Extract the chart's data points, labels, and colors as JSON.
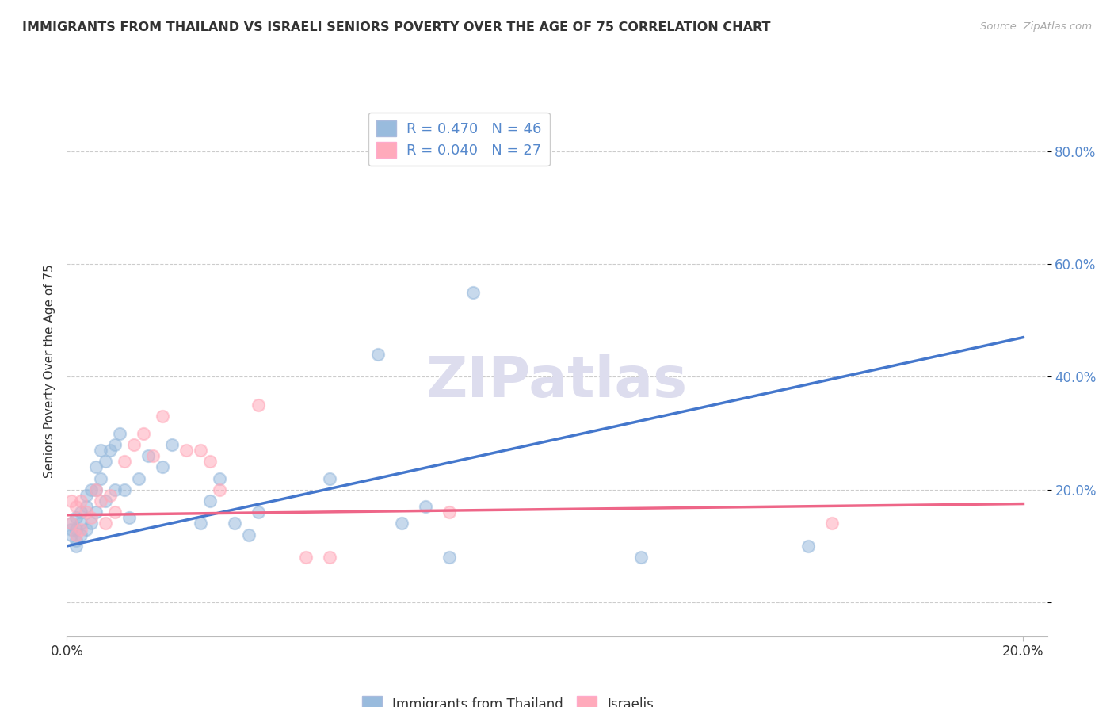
{
  "title": "IMMIGRANTS FROM THAILAND VS ISRAELI SENIORS POVERTY OVER THE AGE OF 75 CORRELATION CHART",
  "source": "Source: ZipAtlas.com",
  "legend_bottom": [
    "Immigrants from Thailand",
    "Israelis"
  ],
  "ylabel": "Seniors Poverty Over the Age of 75",
  "legend_R1": "R = 0.470",
  "legend_N1": "N = 46",
  "legend_R2": "R = 0.040",
  "legend_N2": "N = 27",
  "xlim": [
    0.0,
    0.205
  ],
  "ylim": [
    -0.06,
    0.88
  ],
  "yticks": [
    0.0,
    0.2,
    0.4,
    0.6,
    0.8
  ],
  "ytick_labels": [
    "",
    "20.0%",
    "40.0%",
    "60.0%",
    "80.0%"
  ],
  "xticks": [
    0.0,
    0.2
  ],
  "xtick_labels": [
    "0.0%",
    "20.0%"
  ],
  "blue_dot_color": "#99BBDD",
  "pink_dot_color": "#FFAABB",
  "blue_line_color": "#4477CC",
  "pink_line_color": "#EE6688",
  "grid_color": "#CCCCCC",
  "text_color": "#333333",
  "axis_label_color": "#5588CC",
  "watermark_color": "#DDDDEE",
  "blue_line_x0": 0.0,
  "blue_line_y0": 0.1,
  "blue_line_x1": 0.2,
  "blue_line_y1": 0.47,
  "pink_line_x0": 0.0,
  "pink_line_y0": 0.155,
  "pink_line_x1": 0.2,
  "pink_line_y1": 0.175,
  "blue_scatter_x": [
    0.001,
    0.001,
    0.001,
    0.002,
    0.002,
    0.002,
    0.002,
    0.003,
    0.003,
    0.003,
    0.004,
    0.004,
    0.004,
    0.005,
    0.005,
    0.006,
    0.006,
    0.006,
    0.007,
    0.007,
    0.008,
    0.008,
    0.009,
    0.01,
    0.01,
    0.011,
    0.012,
    0.013,
    0.015,
    0.017,
    0.02,
    0.022,
    0.028,
    0.03,
    0.032,
    0.035,
    0.038,
    0.04,
    0.055,
    0.065,
    0.07,
    0.075,
    0.08,
    0.085,
    0.12,
    0.155
  ],
  "blue_scatter_y": [
    0.12,
    0.13,
    0.14,
    0.1,
    0.11,
    0.13,
    0.15,
    0.12,
    0.14,
    0.16,
    0.13,
    0.17,
    0.19,
    0.14,
    0.2,
    0.16,
    0.2,
    0.24,
    0.22,
    0.27,
    0.18,
    0.25,
    0.27,
    0.2,
    0.28,
    0.3,
    0.2,
    0.15,
    0.22,
    0.26,
    0.24,
    0.28,
    0.14,
    0.18,
    0.22,
    0.14,
    0.12,
    0.16,
    0.22,
    0.44,
    0.14,
    0.17,
    0.08,
    0.55,
    0.08,
    0.1
  ],
  "pink_scatter_x": [
    0.001,
    0.001,
    0.002,
    0.002,
    0.003,
    0.003,
    0.004,
    0.005,
    0.006,
    0.007,
    0.008,
    0.009,
    0.01,
    0.012,
    0.014,
    0.016,
    0.018,
    0.02,
    0.025,
    0.028,
    0.03,
    0.032,
    0.04,
    0.05,
    0.055,
    0.08,
    0.16
  ],
  "pink_scatter_y": [
    0.14,
    0.18,
    0.12,
    0.17,
    0.13,
    0.18,
    0.16,
    0.15,
    0.2,
    0.18,
    0.14,
    0.19,
    0.16,
    0.25,
    0.28,
    0.3,
    0.26,
    0.33,
    0.27,
    0.27,
    0.25,
    0.2,
    0.35,
    0.08,
    0.08,
    0.16,
    0.14
  ]
}
